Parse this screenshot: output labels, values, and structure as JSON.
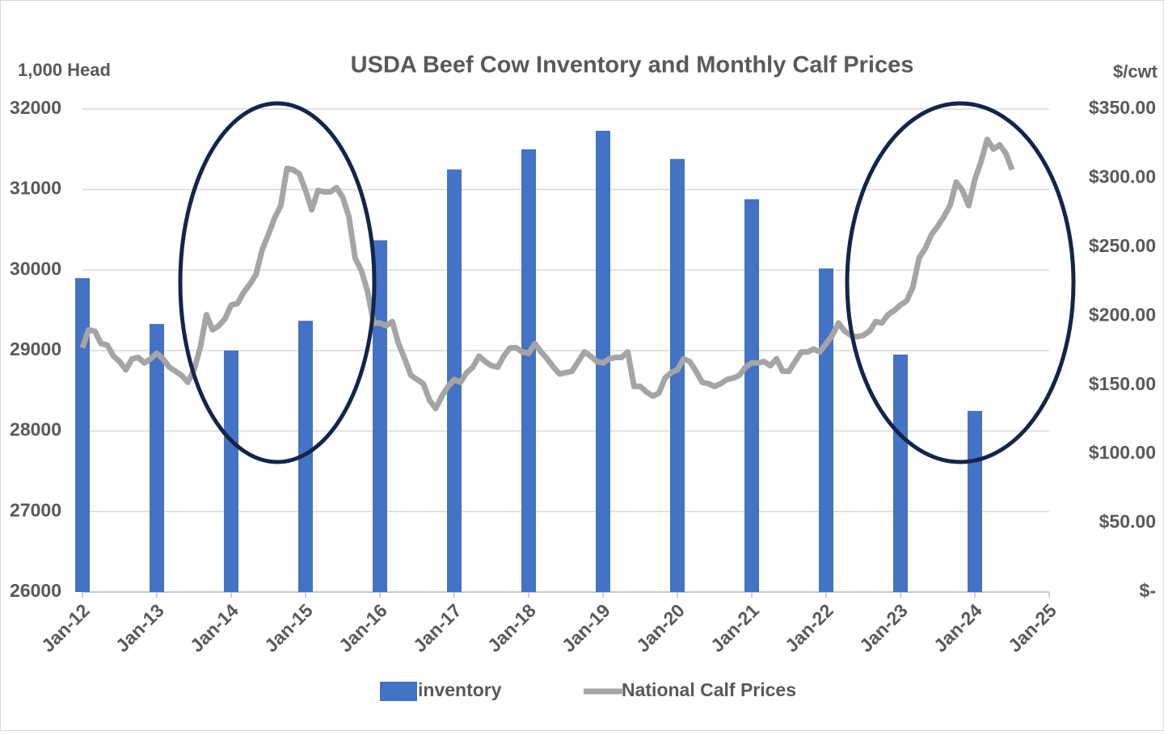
{
  "chart_data": {
    "type": "bar-line",
    "title": "USDA Beef Cow Inventory and Monthly Calf Prices",
    "y_label": "1,000 Head",
    "y2_label": "$/cwt",
    "xlim": [
      "Jan-12",
      "Jan-25"
    ],
    "xticks": [
      "Jan-12",
      "Jan-13",
      "Jan-14",
      "Jan-15",
      "Jan-16",
      "Jan-17",
      "Jan-18",
      "Jan-19",
      "Jan-20",
      "Jan-21",
      "Jan-22",
      "Jan-23",
      "Jan-24",
      "Jan-25"
    ],
    "ylim": [
      26000,
      32000
    ],
    "yticks": [
      26000,
      27000,
      28000,
      29000,
      30000,
      31000,
      32000
    ],
    "y2lim": [
      0,
      350
    ],
    "y2ticks": [
      {
        "value": 0,
        "label": "$-"
      },
      {
        "value": 50,
        "label": "$50.00"
      },
      {
        "value": 100,
        "label": "$100.00"
      },
      {
        "value": 150,
        "label": "$150.00"
      },
      {
        "value": 200,
        "label": "$200.00"
      },
      {
        "value": 250,
        "label": "$250.00"
      },
      {
        "value": 300,
        "label": "$300.00"
      },
      {
        "value": 350,
        "label": "$350.00"
      }
    ],
    "grid": true,
    "legend": "bottom",
    "series": [
      {
        "name": "inventory",
        "type": "bar",
        "color": "#4472c4",
        "x": [
          "Jan-12",
          "Jan-13",
          "Jan-14",
          "Jan-15",
          "Jan-16",
          "Jan-17",
          "Jan-18",
          "Jan-19",
          "Jan-20",
          "Jan-21",
          "Jan-22",
          "Jan-23",
          "Jan-24"
        ],
        "values": [
          29900,
          29330,
          29000,
          29370,
          30370,
          31250,
          31500,
          31730,
          31380,
          30880,
          30020,
          28950,
          28250
        ]
      },
      {
        "name": "National Calf Prices",
        "type": "line",
        "axis": "y2",
        "color": "#a5a5a5",
        "x": [
          "Jan-12",
          "Feb-12",
          "Mar-12",
          "Apr-12",
          "May-12",
          "Jun-12",
          "Jul-12",
          "Aug-12",
          "Sep-12",
          "Oct-12",
          "Nov-12",
          "Dec-12",
          "Jan-13",
          "Feb-13",
          "Mar-13",
          "Apr-13",
          "May-13",
          "Jun-13",
          "Jul-13",
          "Aug-13",
          "Sep-13",
          "Oct-13",
          "Nov-13",
          "Dec-13",
          "Jan-14",
          "Feb-14",
          "Mar-14",
          "Apr-14",
          "May-14",
          "Jun-14",
          "Jul-14",
          "Aug-14",
          "Sep-14",
          "Oct-14",
          "Nov-14",
          "Dec-14",
          "Jan-15",
          "Feb-15",
          "Mar-15",
          "Apr-15",
          "May-15",
          "Jun-15",
          "Jul-15",
          "Aug-15",
          "Sep-15",
          "Oct-15",
          "Nov-15",
          "Dec-15",
          "Jan-16",
          "Feb-16",
          "Mar-16",
          "Apr-16",
          "May-16",
          "Jun-16",
          "Jul-16",
          "Aug-16",
          "Sep-16",
          "Oct-16",
          "Nov-16",
          "Dec-16",
          "Jan-17",
          "Feb-17",
          "Mar-17",
          "Apr-17",
          "May-17",
          "Jun-17",
          "Jul-17",
          "Aug-17",
          "Sep-17",
          "Oct-17",
          "Nov-17",
          "Dec-17",
          "Jan-18",
          "Feb-18",
          "Mar-18",
          "Apr-18",
          "May-18",
          "Jun-18",
          "Jul-18",
          "Aug-18",
          "Sep-18",
          "Oct-18",
          "Nov-18",
          "Dec-18",
          "Jan-19",
          "Feb-19",
          "Mar-19",
          "Apr-19",
          "May-19",
          "Jun-19",
          "Jul-19",
          "Aug-19",
          "Sep-19",
          "Oct-19",
          "Nov-19",
          "Dec-19",
          "Jan-20",
          "Feb-20",
          "Mar-20",
          "Apr-20",
          "May-20",
          "Jun-20",
          "Jul-20",
          "Aug-20",
          "Sep-20",
          "Oct-20",
          "Nov-20",
          "Dec-20",
          "Jan-21",
          "Feb-21",
          "Mar-21",
          "Apr-21",
          "May-21",
          "Jun-21",
          "Jul-21",
          "Aug-21",
          "Sep-21",
          "Oct-21",
          "Nov-21",
          "Dec-21",
          "Jan-22",
          "Feb-22",
          "Mar-22",
          "Apr-22",
          "May-22",
          "Jun-22",
          "Jul-22",
          "Aug-22",
          "Sep-22",
          "Oct-22",
          "Nov-22",
          "Dec-22",
          "Jan-23",
          "Feb-23",
          "Mar-23",
          "Apr-23",
          "May-23",
          "Jun-23",
          "Jul-23",
          "Aug-23",
          "Sep-23",
          "Oct-23",
          "Nov-23",
          "Dec-23",
          "Jan-24",
          "Feb-24",
          "Mar-24",
          "Apr-24",
          "May-24",
          "Jun-24",
          "Jul-24"
        ],
        "values": [
          177,
          190,
          189,
          180,
          179,
          171,
          167,
          161,
          169,
          170,
          166,
          169,
          173,
          169,
          163,
          160,
          157,
          152,
          161,
          177,
          201,
          190,
          193,
          198,
          208,
          209,
          217,
          223,
          230,
          248,
          259,
          271,
          280,
          307,
          306,
          303,
          291,
          277,
          291,
          290,
          290,
          293,
          286,
          272,
          242,
          233,
          218,
          195,
          195,
          193,
          196,
          180,
          169,
          157,
          154,
          151,
          139,
          133,
          142,
          149,
          154,
          152,
          159,
          163,
          171,
          167,
          164,
          163,
          171,
          177,
          177,
          174,
          173,
          180,
          174,
          169,
          163,
          158,
          159,
          160,
          167,
          174,
          171,
          167,
          166,
          169,
          170,
          170,
          174,
          149,
          149,
          145,
          142,
          144,
          155,
          159,
          161,
          169,
          167,
          160,
          152,
          151,
          149,
          151,
          154,
          155,
          157,
          163,
          166,
          166,
          167,
          164,
          169,
          160,
          160,
          167,
          174,
          174,
          176,
          174,
          180,
          186,
          195,
          189,
          186,
          185,
          186,
          189,
          196,
          195,
          201,
          204,
          208,
          211,
          221,
          242,
          249,
          259,
          265,
          272,
          280,
          297,
          291,
          280,
          299,
          312,
          328,
          321,
          324,
          318,
          306
        ]
      }
    ]
  }
}
